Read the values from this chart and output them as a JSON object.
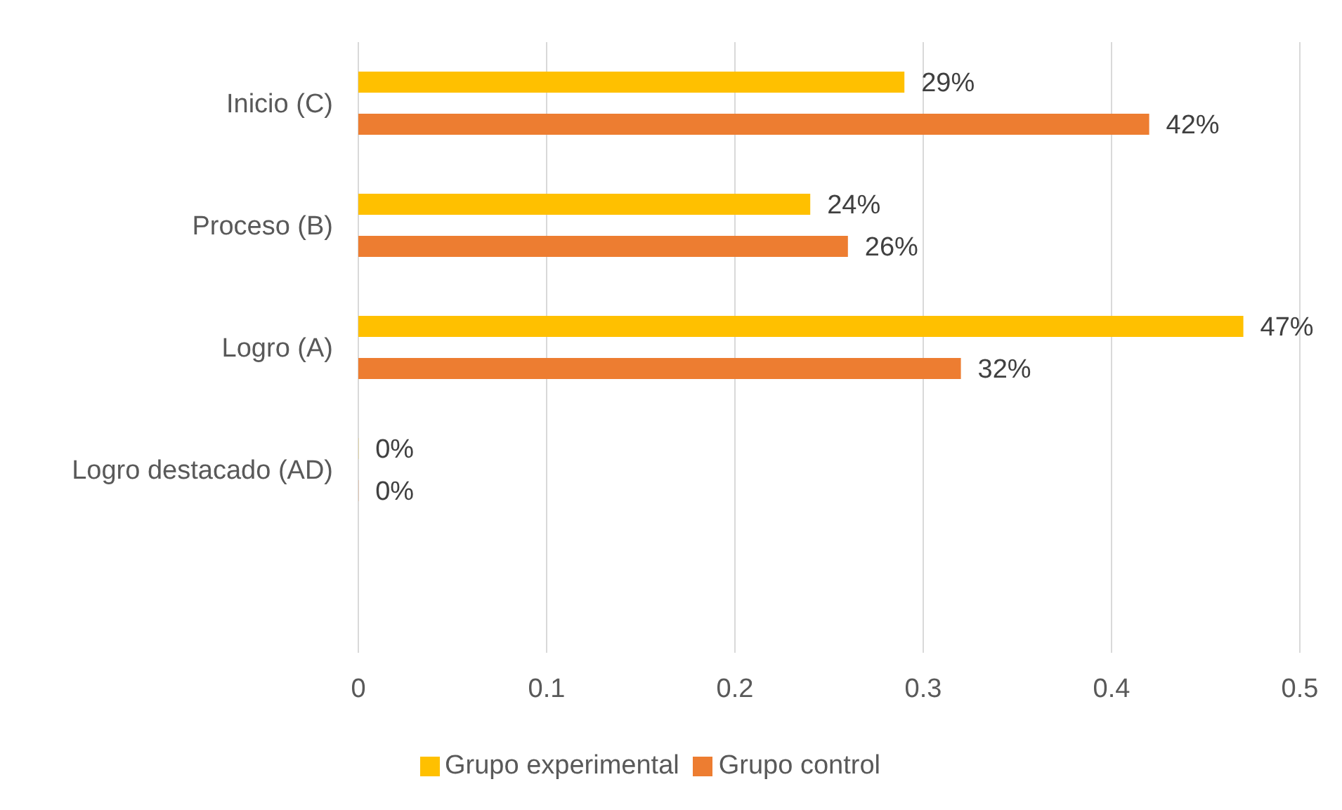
{
  "chart_data": {
    "type": "bar",
    "orientation": "horizontal",
    "categories": [
      "Inicio (C)",
      "Proceso (B)",
      "Logro (A)",
      "Logro destacado (AD)",
      null
    ],
    "series": [
      {
        "name": "Grupo experimental",
        "color": "#ffc000",
        "values": [
          0.29,
          0.24,
          0.47,
          0,
          null
        ],
        "value_labels": [
          "29%",
          "24%",
          "47%",
          "0%",
          null
        ]
      },
      {
        "name": "Grupo control",
        "color": "#ed7d31",
        "values": [
          0.42,
          0.26,
          0.32,
          0,
          null
        ],
        "value_labels": [
          "42%",
          "26%",
          "32%",
          "0%",
          null
        ]
      }
    ],
    "xlim": [
      0,
      0.5
    ],
    "xticks": [
      0,
      0.1,
      0.2,
      0.3,
      0.4,
      0.5
    ],
    "grid": "x",
    "legend": "bottom"
  }
}
